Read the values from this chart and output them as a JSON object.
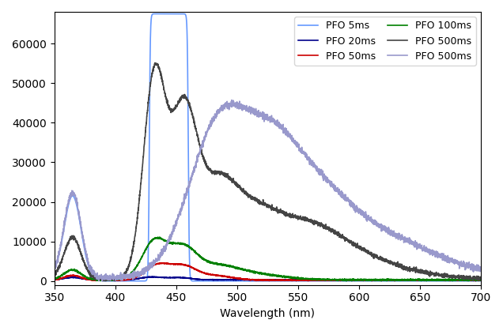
{
  "xlabel": "Wavelength (nm)",
  "xlim": [
    350,
    700
  ],
  "ylim": [
    -1000,
    68000
  ],
  "series": [
    {
      "label": "PFO 5ms",
      "color": "#6699ff",
      "lw": 1.2
    },
    {
      "label": "PFO 20ms",
      "color": "#00008B",
      "lw": 1.2
    },
    {
      "label": "PFO 50ms",
      "color": "#cc0000",
      "lw": 1.2
    },
    {
      "label": "PFO 100ms",
      "color": "#008000",
      "lw": 1.2
    },
    {
      "label": "PFO 500ms",
      "color": "#444444",
      "lw": 1.2
    },
    {
      "label": "PFO 500ms",
      "color": "#9999cc",
      "lw": 1.2
    }
  ],
  "legend_loc": "upper right",
  "legend_ncol": 2,
  "legend_fontsize": 9
}
